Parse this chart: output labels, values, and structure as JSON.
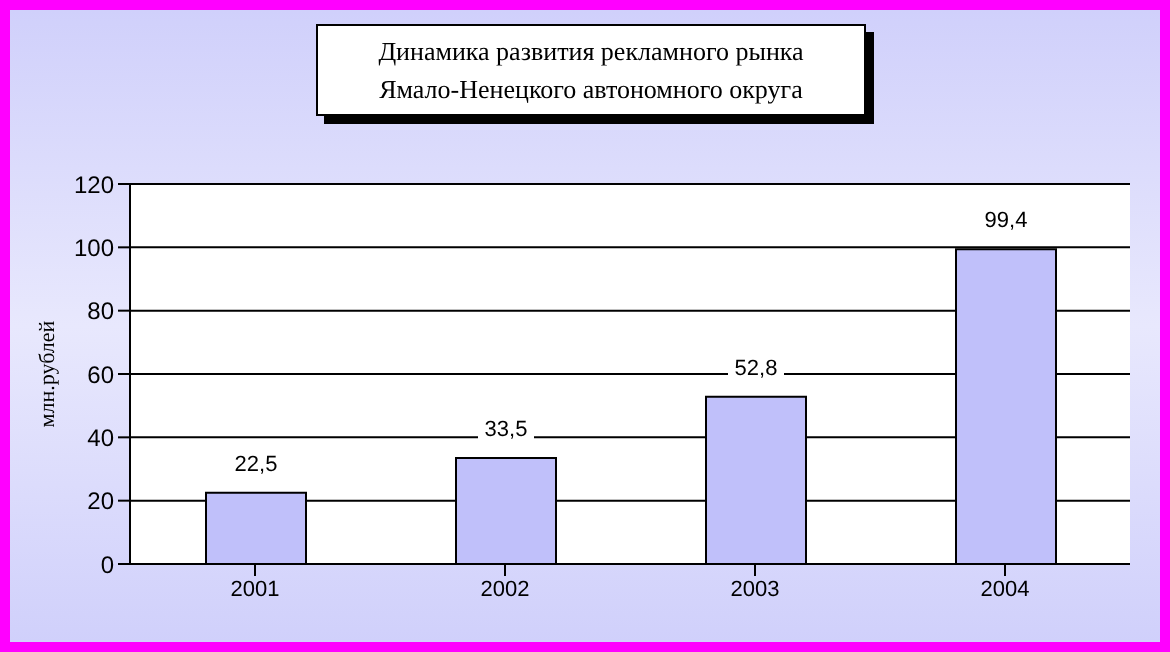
{
  "chart_data": {
    "type": "bar",
    "title": "Динамика развития рекламного рынка\nЯмало-Ненецкого автономного округа",
    "ylabel": "млн.рублей",
    "categories": [
      "2001",
      "2002",
      "2003",
      "2004"
    ],
    "values": [
      22.5,
      33.5,
      52.8,
      99.4
    ],
    "color": "#c0c0fa",
    "value_labels": [
      "22,5",
      "33,5",
      "52,8",
      "99,4"
    ],
    "ylim": [
      0,
      120
    ],
    "yticks": [
      0,
      20,
      40,
      60,
      80,
      100,
      120
    ],
    "grid": "y"
  }
}
